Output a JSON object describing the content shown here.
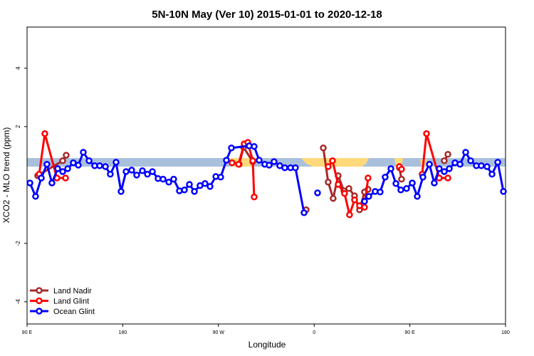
{
  "chart_data": {
    "type": "line",
    "title": "5N-10N May (Ver 10)   2015-01-01 to 2020-12-18",
    "x_label": "Longitude",
    "y_label": "XCO2 - MLO trend (ppm)",
    "xlim": [
      90,
      540
    ],
    "ylim": [
      -4.76,
      5.41
    ],
    "xticks": [
      {
        "value": 90,
        "label": "90 E"
      },
      180,
      {
        "value": 270,
        "label": "90 W"
      },
      {
        "value": 360,
        "label": "0"
      },
      {
        "value": 450,
        "label": "90 E"
      },
      {
        "value": 540,
        "label": "180"
      }
    ],
    "yticks": [
      -4,
      -2,
      2,
      4
    ],
    "legend": "bottom-left",
    "series": [
      {
        "name": "Land Nadir",
        "color": "#a52a2a",
        "x": [
          100.0,
          123.5,
          126.8,
          200,
          289.5,
          293.6,
          302.3,
          330,
          352.5,
          360,
          368.6,
          373.2,
          377.9,
          382.6,
          388.0,
          392.7,
          398.0,
          402.7,
          407.4,
          410.7,
          420,
          440.2,
          442.2,
          460,
          482.4,
          485.8
        ],
        "values": [
          0.32,
          0.83,
          1.02,
          null,
          0.71,
          1.29,
          0.8,
          null,
          -0.85,
          null,
          1.27,
          0.1,
          -0.46,
          0.32,
          -0.2,
          -0.12,
          -0.37,
          -0.85,
          -0.24,
          -0.15,
          null,
          0.59,
          0.2,
          null,
          0.83,
          1.05
        ]
      },
      {
        "name": "Land Glint",
        "color": "#ff0000",
        "x": [
          101.4,
          106.7,
          118.1,
          126.2,
          200,
          282.8,
          288.9,
          294.2,
          297.6,
          302.3,
          303.6,
          340,
          373.2,
          377.3,
          382.6,
          388.6,
          393.3,
          398.0,
          402.7,
          407.4,
          410.7,
          420,
          440.2,
          442.2,
          450,
          461.6,
          465.7,
          477.7,
          485.8
        ],
        "values": [
          0.37,
          1.76,
          0.24,
          0.24,
          null,
          0.76,
          0.71,
          1.41,
          1.46,
          0.83,
          -0.41,
          null,
          0.63,
          0.83,
          0.02,
          -0.29,
          -1.02,
          -0.51,
          -0.71,
          -0.76,
          0.24,
          null,
          0.63,
          0.54,
          null,
          0.37,
          1.76,
          0.24,
          0.24
        ]
      },
      {
        "name": "Ocean Glint",
        "color": "#0000ff",
        "x": [
          92.7,
          98.0,
          103.4,
          108.7,
          113.4,
          118.8,
          123.5,
          128.2,
          133.5,
          138.2,
          142.9,
          148.3,
          153.6,
          158.3,
          163.7,
          168.3,
          173.7,
          178.4,
          183.1,
          188.4,
          193.1,
          198.5,
          203.2,
          207.9,
          213.2,
          217.9,
          223.3,
          227.9,
          233.3,
          238.0,
          242.7,
          247.4,
          252.7,
          257.4,
          262.1,
          267.5,
          272.1,
          277.5,
          282.2,
          298.9,
          303.6,
          308.3,
          313.6,
          317.7,
          322.3,
          327.7,
          332.4,
          337.8,
          342.4,
          350.5,
          356,
          363.2,
          385,
          407.4,
          411.4,
          417.4,
          422.1,
          426.8,
          432.2,
          436.9,
          441.5,
          446.9,
          452.3,
          457.0,
          462.3,
          468.4,
          473.0,
          477.7,
          482.4,
          487.1,
          492.5,
          497.2,
          502.5,
          507.2,
          512.6,
          517.2,
          522.6,
          527.3,
          532.7,
          538.0
        ],
        "values": [
          0.07,
          -0.39,
          0.24,
          0.71,
          0.07,
          0.56,
          0.46,
          0.56,
          0.76,
          0.68,
          1.12,
          0.83,
          0.66,
          0.66,
          0.63,
          0.37,
          0.78,
          -0.22,
          0.46,
          0.51,
          0.34,
          0.49,
          0.37,
          0.46,
          0.22,
          0.2,
          0.1,
          0.2,
          -0.2,
          -0.17,
          0.02,
          -0.22,
          -0.02,
          0.05,
          -0.05,
          0.29,
          0.27,
          0.85,
          1.27,
          1.34,
          1.32,
          0.85,
          0.71,
          0.68,
          0.8,
          0.66,
          0.59,
          0.59,
          0.59,
          -0.95,
          null,
          -0.27,
          null,
          -0.56,
          -0.39,
          -0.22,
          -0.24,
          0.27,
          0.56,
          0.05,
          -0.17,
          -0.12,
          0.07,
          -0.39,
          0.27,
          0.71,
          0.07,
          0.56,
          0.46,
          0.56,
          0.76,
          0.71,
          1.12,
          0.83,
          0.66,
          0.66,
          0.63,
          0.37,
          0.78,
          -0.22
        ]
      }
    ]
  }
}
